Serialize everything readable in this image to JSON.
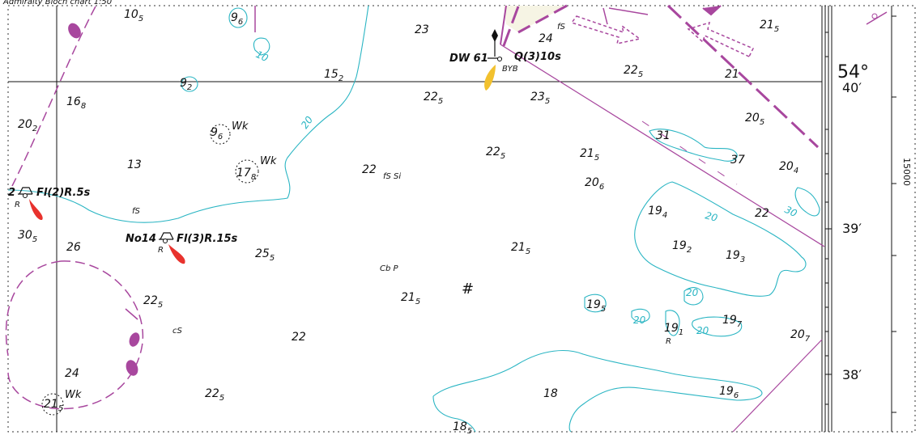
{
  "header": {
    "caption": "Admiralty Bloch chart 1:50"
  },
  "soundings": [
    {
      "id": "s1",
      "main": "10",
      "sub": "5"
    },
    {
      "id": "s2",
      "main": "9",
      "sub": "6"
    },
    {
      "id": "s3",
      "main": "23",
      "sub": ""
    },
    {
      "id": "s4",
      "main": "24",
      "sub": ""
    },
    {
      "id": "s5",
      "main": "21",
      "sub": "5"
    },
    {
      "id": "s6",
      "main": "15",
      "sub": "2"
    },
    {
      "id": "s7",
      "main": "9",
      "sub": "2"
    },
    {
      "id": "s8",
      "main": "22",
      "sub": "5"
    },
    {
      "id": "s9",
      "main": "21",
      "sub": ""
    },
    {
      "id": "s10",
      "main": "16",
      "sub": "8"
    },
    {
      "id": "s11",
      "main": "22",
      "sub": "5"
    },
    {
      "id": "s12",
      "main": "23",
      "sub": "5"
    },
    {
      "id": "s13",
      "main": "20",
      "sub": "2"
    },
    {
      "id": "s14",
      "main": "9",
      "sub": "6"
    },
    {
      "id": "s15",
      "main": "20",
      "sub": "5"
    },
    {
      "id": "s16",
      "main": "31",
      "sub": ""
    },
    {
      "id": "s17",
      "main": "22",
      "sub": "5"
    },
    {
      "id": "s18",
      "main": "21",
      "sub": "5"
    },
    {
      "id": "s19",
      "main": "37",
      "sub": ""
    },
    {
      "id": "s20",
      "main": "13",
      "sub": ""
    },
    {
      "id": "s21",
      "main": "17",
      "sub": "8"
    },
    {
      "id": "s22",
      "main": "22",
      "sub": ""
    },
    {
      "id": "s23",
      "main": "20",
      "sub": "6"
    },
    {
      "id": "s24",
      "main": "20",
      "sub": "4"
    },
    {
      "id": "s25",
      "main": "19",
      "sub": "4"
    },
    {
      "id": "s26",
      "main": "22",
      "sub": ""
    },
    {
      "id": "s27",
      "main": "30",
      "sub": "5"
    },
    {
      "id": "s28",
      "main": "26",
      "sub": ""
    },
    {
      "id": "s29",
      "main": "25",
      "sub": "5"
    },
    {
      "id": "s30",
      "main": "21",
      "sub": "5"
    },
    {
      "id": "s31",
      "main": "19",
      "sub": "2"
    },
    {
      "id": "s32",
      "main": "19",
      "sub": "3"
    },
    {
      "id": "s33",
      "main": "22",
      "sub": "5"
    },
    {
      "id": "s34",
      "main": "21",
      "sub": "5"
    },
    {
      "id": "s35",
      "main": "19",
      "sub": "5"
    },
    {
      "id": "s36",
      "main": "19",
      "sub": "1"
    },
    {
      "id": "s37",
      "main": "19",
      "sub": "7"
    },
    {
      "id": "s38",
      "main": "22",
      "sub": ""
    },
    {
      "id": "s39",
      "main": "20",
      "sub": "7"
    },
    {
      "id": "s40",
      "main": "24",
      "sub": ""
    },
    {
      "id": "s41",
      "main": "18",
      "sub": ""
    },
    {
      "id": "s42",
      "main": "19",
      "sub": "6"
    },
    {
      "id": "s43",
      "main": "22",
      "sub": "5"
    },
    {
      "id": "s44",
      "main": "21",
      "sub": "5"
    },
    {
      "id": "s45",
      "main": "18",
      "sub": "5"
    }
  ],
  "wrecks": {
    "label": "Wk"
  },
  "seabed": {
    "fs": "fS",
    "fssi": "fS Si",
    "cbp": "Cb P",
    "cs": "cS",
    "rock": "R"
  },
  "lights": {
    "dw61_name": "DW 61",
    "dw61_char": "Q(3)10s",
    "dw61_colour": "BYB",
    "buoy2_name": "2",
    "buoy2_char": "Fl(2)R.5s",
    "buoy2_colour": "R",
    "no14_name": "No14",
    "no14_char": "Fl(3)R.15s",
    "no14_colour": "R"
  },
  "contours": {
    "c10": "10",
    "c20": "20",
    "c30": "30"
  },
  "latitude": {
    "deg": "54°",
    "m40": "40′",
    "m39": "39′",
    "m38": "38′",
    "scale_label": "15000"
  },
  "symbols": {
    "foul": "#"
  },
  "colors": {
    "contour": "#2ab5c3",
    "traffic": "#a8479e",
    "light_red": "#e8322d",
    "light_yellow": "#f2c12e"
  }
}
